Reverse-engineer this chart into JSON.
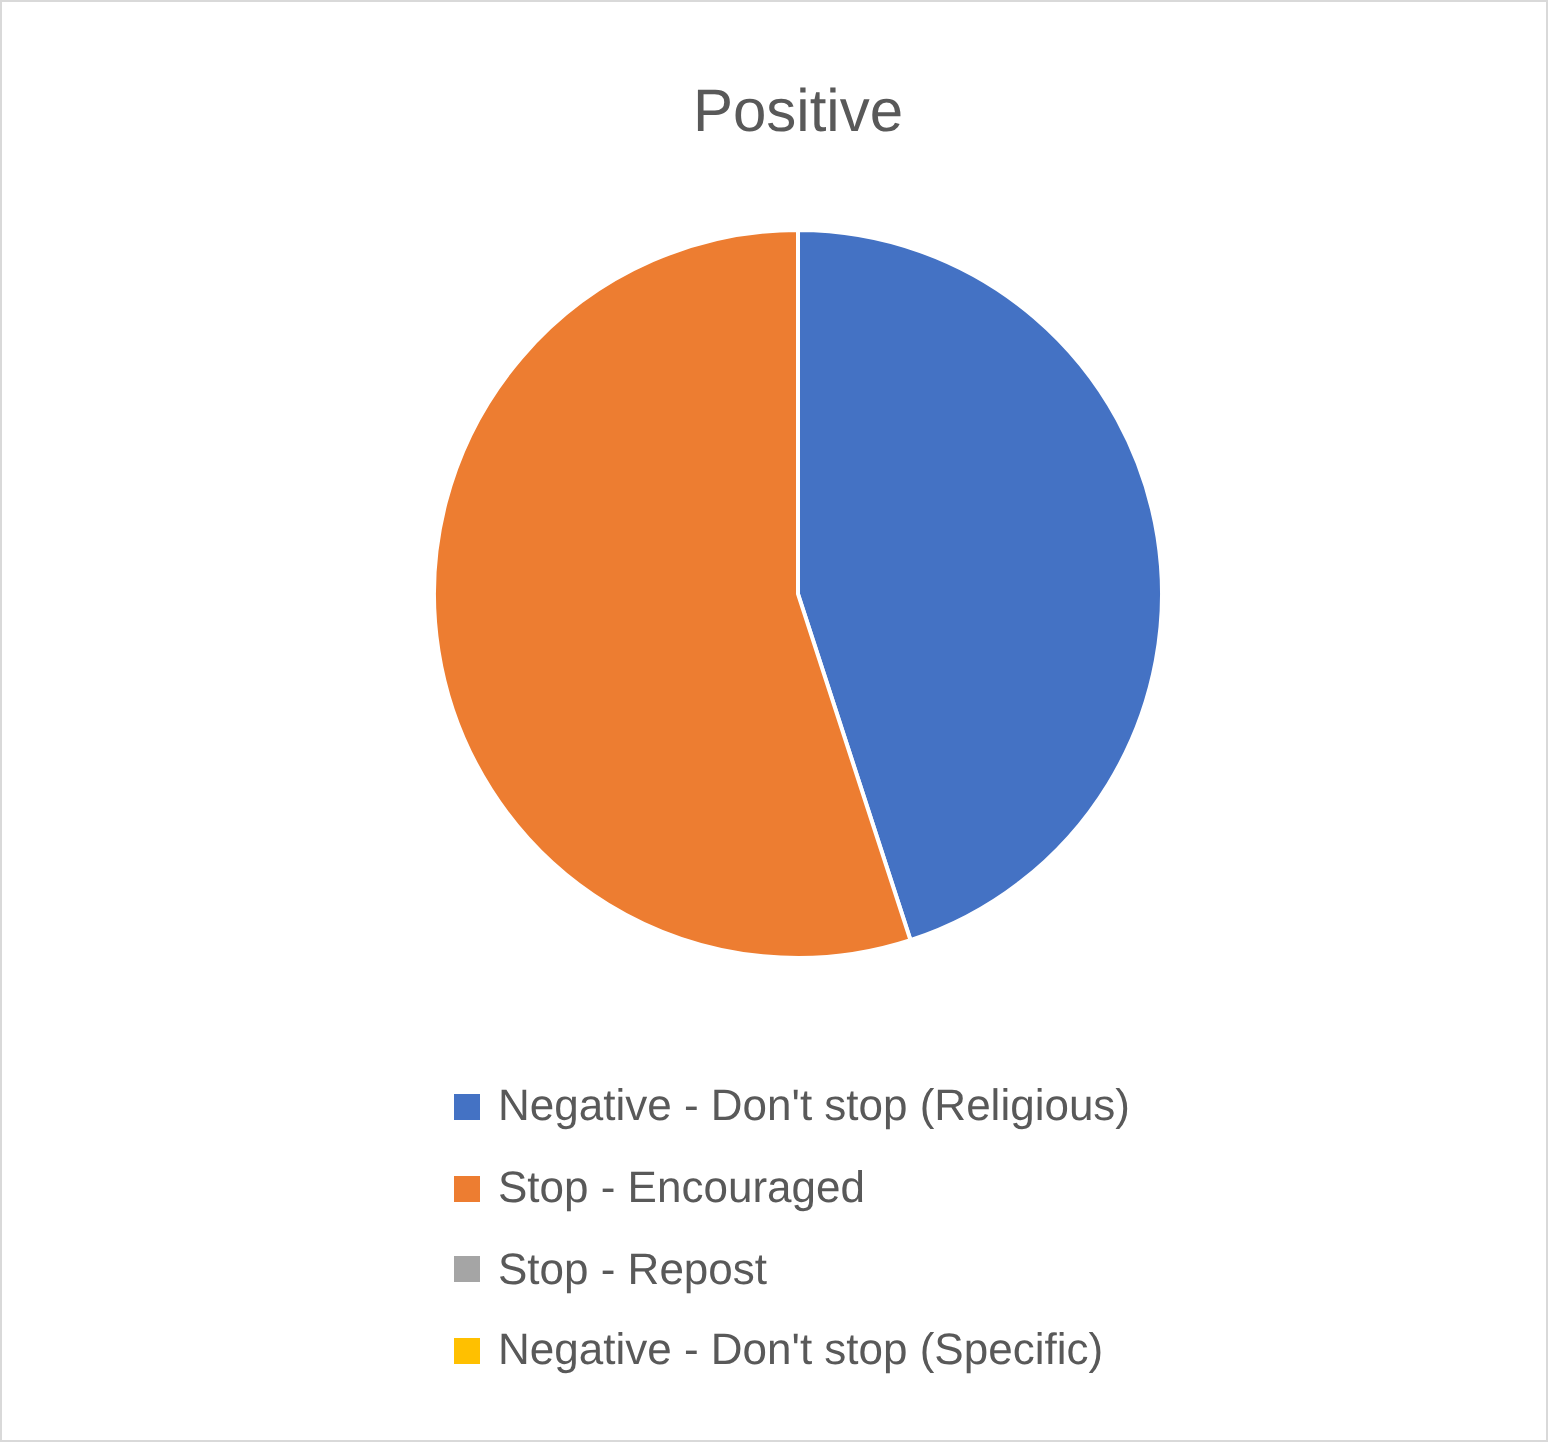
{
  "chart_data": {
    "type": "pie",
    "title": "Positive",
    "categories": [
      "Negative - Don't stop (Religious)",
      "Stop - Encouraged",
      "Stop - Repost",
      "Negative - Don't stop (Specific)"
    ],
    "values": [
      45,
      55,
      0,
      0
    ],
    "colors": [
      "#4472c4",
      "#ed7d31",
      "#a5a5a5",
      "#ffc000"
    ],
    "legend": "bottom"
  }
}
